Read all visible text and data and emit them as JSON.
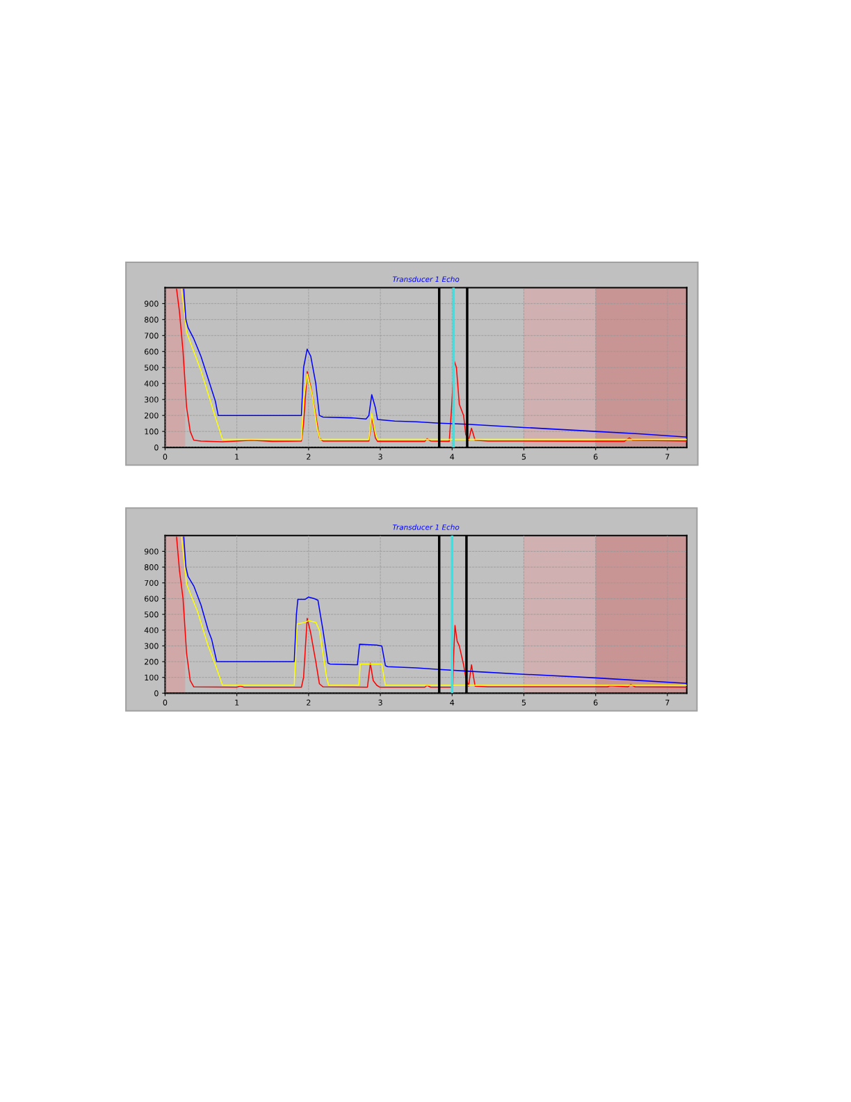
{
  "chart_data": [
    {
      "type": "line",
      "title": "Transducer 1 Echo",
      "xlim": [
        0,
        7.27
      ],
      "ylim": [
        0,
        1000
      ],
      "xticks": [
        0,
        1,
        2,
        3,
        4,
        5,
        6,
        7
      ],
      "yticks": [
        0,
        100,
        200,
        300,
        400,
        500,
        600,
        700,
        800,
        900
      ],
      "grid": true,
      "legend": false,
      "series": [
        {
          "color": "#0000ff",
          "x": [
            0.26,
            0.29,
            0.32,
            0.4,
            0.5,
            0.6,
            0.7,
            0.74,
            1.9,
            1.93,
            1.98,
            2.03,
            2.1,
            2.15,
            2.2,
            2.6,
            2.8,
            2.84,
            2.88,
            2.93,
            2.96,
            3.2,
            3.5,
            3.82,
            4.2,
            5,
            6,
            6.6,
            7.27
          ],
          "values": [
            990,
            800,
            750,
            680,
            570,
            430,
            290,
            200,
            200,
            500,
            615,
            570,
            400,
            200,
            190,
            185,
            178,
            200,
            330,
            250,
            175,
            165,
            160,
            152,
            145,
            125,
            100,
            85,
            65
          ]
        },
        {
          "color": "#ffff00",
          "x": [
            0.23,
            0.3,
            0.5,
            0.7,
            0.8,
            1.9,
            1.93,
            1.98,
            2.05,
            2.12,
            2.16,
            2.84,
            2.88,
            2.93,
            2.96,
            4.0,
            7.27
          ],
          "values": [
            990,
            720,
            480,
            190,
            50,
            50,
            300,
            460,
            330,
            120,
            50,
            50,
            210,
            90,
            50,
            50,
            50
          ]
        },
        {
          "color": "#ff0000",
          "x": [
            0.16,
            0.2,
            0.25,
            0.3,
            0.35,
            0.4,
            0.5,
            0.8,
            1.0,
            1.2,
            1.5,
            1.9,
            1.93,
            1.98,
            2.03,
            2.1,
            2.15,
            2.2,
            2.84,
            2.88,
            2.93,
            2.96,
            3.62,
            3.65,
            3.7,
            3.96,
            3.99,
            4.03,
            4.06,
            4.1,
            4.16,
            4.19,
            4.23,
            4.27,
            4.32,
            4.5,
            6.4,
            6.47,
            6.52,
            7.27
          ],
          "values": [
            990,
            850,
            600,
            250,
            100,
            45,
            40,
            35,
            40,
            45,
            38,
            40,
            150,
            475,
            380,
            200,
            60,
            40,
            40,
            190,
            60,
            38,
            38,
            55,
            40,
            38,
            230,
            540,
            500,
            270,
            200,
            80,
            45,
            120,
            45,
            40,
            38,
            60,
            45,
            40
          ]
        }
      ],
      "ref_lines": [
        {
          "axis": "x",
          "value": 3.82,
          "color": "#000000"
        },
        {
          "axis": "x",
          "value": 4.02,
          "color": "#33e6e6"
        },
        {
          "axis": "x",
          "value": 4.21,
          "color": "#000000"
        }
      ],
      "bands": [
        {
          "axis": "x",
          "from": 0,
          "to": 0.28,
          "color": "#d0a8a8"
        },
        {
          "axis": "x",
          "from": 5,
          "to": 6,
          "color": "#d0b0b0"
        },
        {
          "axis": "x",
          "from": 6,
          "to": 7.27,
          "color": "#c99494"
        }
      ]
    },
    {
      "type": "line",
      "title": "Transducer 1 Echo",
      "xlim": [
        0,
        7.27
      ],
      "ylim": [
        0,
        1000
      ],
      "xticks": [
        0,
        1,
        2,
        3,
        4,
        5,
        6,
        7
      ],
      "yticks": [
        0,
        100,
        200,
        300,
        400,
        500,
        600,
        700,
        800,
        900
      ],
      "grid": true,
      "legend": false,
      "series": [
        {
          "color": "#0000ff",
          "x": [
            0.26,
            0.29,
            0.32,
            0.4,
            0.5,
            0.6,
            0.65,
            0.72,
            1.8,
            1.83,
            1.85,
            1.95,
            2.0,
            2.08,
            2.13,
            2.2,
            2.27,
            2.3,
            2.68,
            2.71,
            2.95,
            3.02,
            3.07,
            3.1,
            3.5,
            3.82,
            4.2,
            5,
            6,
            7.27
          ],
          "values": [
            990,
            800,
            740,
            680,
            560,
            400,
            340,
            200,
            200,
            500,
            595,
            595,
            610,
            600,
            590,
            400,
            190,
            185,
            180,
            310,
            305,
            300,
            175,
            168,
            160,
            150,
            140,
            120,
            97,
            62
          ]
        },
        {
          "color": "#ffff00",
          "x": [
            0.23,
            0.3,
            0.45,
            0.6,
            0.7,
            0.8,
            1.8,
            1.84,
            1.95,
            2.0,
            2.1,
            2.15,
            2.25,
            2.28,
            2.7,
            2.72,
            3.02,
            3.07,
            7.27
          ],
          "values": [
            990,
            690,
            520,
            300,
            180,
            50,
            50,
            440,
            450,
            460,
            450,
            400,
            100,
            50,
            50,
            185,
            185,
            50,
            50
          ]
        },
        {
          "color": "#ff0000",
          "x": [
            0.16,
            0.2,
            0.25,
            0.3,
            0.35,
            0.4,
            1.0,
            1.05,
            1.1,
            1.9,
            1.93,
            1.98,
            2.03,
            2.1,
            2.15,
            2.2,
            2.82,
            2.86,
            2.9,
            2.95,
            2.99,
            3.62,
            3.65,
            3.7,
            4.01,
            4.02,
            4.04,
            4.07,
            4.1,
            4.16,
            4.19,
            4.23,
            4.27,
            4.32,
            4.5,
            6.17,
            6.2,
            6.45,
            6.49,
            6.55,
            7.27
          ],
          "values": [
            990,
            780,
            600,
            250,
            80,
            40,
            38,
            45,
            38,
            38,
            100,
            475,
            380,
            200,
            60,
            40,
            38,
            190,
            80,
            50,
            38,
            38,
            50,
            38,
            38,
            230,
            430,
            330,
            300,
            180,
            100,
            45,
            180,
            45,
            40,
            40,
            48,
            40,
            55,
            40,
            38
          ]
        }
      ],
      "ref_lines": [
        {
          "axis": "x",
          "value": 3.82,
          "color": "#000000"
        },
        {
          "axis": "x",
          "value": 4.0,
          "color": "#33e6e6"
        },
        {
          "axis": "x",
          "value": 4.2,
          "color": "#000000"
        }
      ],
      "bands": [
        {
          "axis": "x",
          "from": 0,
          "to": 0.28,
          "color": "#d0a8a8"
        },
        {
          "axis": "x",
          "from": 5,
          "to": 6,
          "color": "#d0b0b0"
        },
        {
          "axis": "x",
          "from": 6,
          "to": 7.27,
          "color": "#c99494"
        }
      ]
    }
  ]
}
